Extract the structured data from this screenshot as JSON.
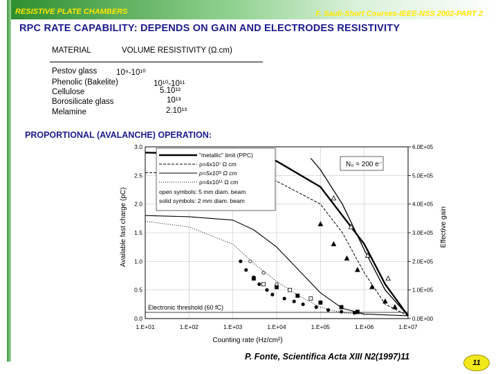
{
  "header": {
    "left": "RESISTIVE PLATE CHAMBERS",
    "right": "F. Sauli-Short Courses-IEEE-NSS 2002-PART 2"
  },
  "title": "RPC RATE CAPABILITY: DEPENDS ON GAIN AND ELECTRODES RESISTIVITY",
  "table": {
    "col_material": "MATERIAL",
    "col_resistivity": "VOLUME RESISTIVITY (Ω.cm)",
    "rows": [
      {
        "material": "Pestov glass",
        "resistivity": "10⁹-10¹⁰"
      },
      {
        "material": "Phenolic (Bakelite)",
        "resistivity": "10¹⁰-10¹¹"
      },
      {
        "material": "Cellulose",
        "resistivity": "5.10¹²"
      },
      {
        "material": "Borosilicate glass",
        "resistivity": "10¹³"
      },
      {
        "material": "Melamine",
        "resistivity": "2.10¹³"
      }
    ]
  },
  "section_title": "PROPORTIONAL (AVALANCHE) OPERATION:",
  "citation": "P. Fonte, Scientifica Acta XIII N2(1997)11",
  "page_number": "11",
  "colors": {
    "header_text": "#ffe800",
    "title_text": "#1b1b8f",
    "header_green": "#2f8f2f",
    "badge": "#f3e81a"
  },
  "chart_data": {
    "type": "line",
    "xlabel": "Counting rate (Hz/cm²)",
    "ylabel": "Available fast charge (pC)",
    "y2label": "Effective gain",
    "x_scale": "log",
    "x_ticks": [
      "1.E+01",
      "1.E+02",
      "1.E+03",
      "1.E+04",
      "1.E+05",
      "1.E+06",
      "1.E+07"
    ],
    "xlim": [
      10,
      10000000
    ],
    "y_ticks": [
      "0.0",
      "0.5",
      "1.0",
      "1.5",
      "2.0",
      "2.5",
      "3.0"
    ],
    "ylim": [
      0,
      3.0
    ],
    "y2_ticks": [
      "0.0E+00",
      "1.0E+05",
      "2.0E+05",
      "3.0E+05",
      "4.0E+05",
      "5.0E+05",
      "6.0E+05"
    ],
    "y2lim": [
      0,
      600000
    ],
    "threshold_label": "Electronic threshold (60 fC)",
    "threshold_value": 0.06,
    "gain_label": "N₀ = 200 e⁻",
    "legend": [
      "\"metallic\" limit (PPC)",
      "ρ=4x10⁷ Ω cm",
      "ρ=5x10⁹ Ω cm",
      "ρ=4x10¹¹ Ω cm",
      "open symbols: 5 mm diam. beam",
      "solid symbols: 2 mm diam. beam"
    ],
    "series": [
      {
        "style": "bold",
        "points": [
          [
            10,
            2.9
          ],
          [
            100,
            2.88
          ],
          [
            1000,
            2.85
          ],
          [
            10000,
            2.75
          ],
          [
            100000,
            2.3
          ],
          [
            1000000,
            1.3
          ],
          [
            3000000,
            0.6
          ],
          [
            10000000,
            0.05
          ]
        ]
      },
      {
        "style": "dashed",
        "points": [
          [
            10,
            2.55
          ],
          [
            100,
            2.54
          ],
          [
            1000,
            2.52
          ],
          [
            10000,
            2.4
          ],
          [
            100000,
            2.0
          ],
          [
            316000,
            1.5
          ],
          [
            1000000,
            0.8
          ],
          [
            3000000,
            0.25
          ],
          [
            10000000,
            0.05
          ]
        ]
      },
      {
        "style": "solid",
        "points": [
          [
            10,
            1.8
          ],
          [
            100,
            1.78
          ],
          [
            1000,
            1.72
          ],
          [
            3000,
            1.55
          ],
          [
            10000,
            1.25
          ],
          [
            31600,
            0.85
          ],
          [
            100000,
            0.45
          ],
          [
            316000,
            0.18
          ],
          [
            1000000,
            0.08
          ],
          [
            10000000,
            0.05
          ]
        ]
      },
      {
        "style": "dotted",
        "points": [
          [
            10,
            1.7
          ],
          [
            100,
            1.6
          ],
          [
            1000,
            1.3
          ],
          [
            3160,
            0.95
          ],
          [
            10000,
            0.65
          ],
          [
            31600,
            0.4
          ],
          [
            100000,
            0.2
          ],
          [
            316000,
            0.1
          ],
          [
            1000000,
            0.07
          ]
        ]
      },
      {
        "style": "steep",
        "points": [
          [
            60000,
            2.8
          ],
          [
            100000,
            2.6
          ],
          [
            316000,
            2.0
          ],
          [
            1000000,
            1.2
          ],
          [
            3000000,
            0.5
          ],
          [
            10000000,
            0.05
          ]
        ]
      }
    ],
    "markers": [
      {
        "x": 100000,
        "y": 1.65,
        "s": "tri"
      },
      {
        "x": 200000,
        "y": 1.3,
        "s": "tri"
      },
      {
        "x": 400000,
        "y": 1.05,
        "s": "tri"
      },
      {
        "x": 700000,
        "y": 0.85,
        "s": "tri"
      },
      {
        "x": 1500000,
        "y": 0.55,
        "s": "tri"
      },
      {
        "x": 3000000,
        "y": 0.3,
        "s": "tri"
      },
      {
        "x": 5000000,
        "y": 0.2,
        "s": "tri"
      },
      {
        "x": 200000,
        "y": 2.1,
        "s": "tri-open"
      },
      {
        "x": 500000,
        "y": 1.6,
        "s": "tri-open"
      },
      {
        "x": 1200000,
        "y": 1.1,
        "s": "tri-open"
      },
      {
        "x": 3500000,
        "y": 0.7,
        "s": "tri-open"
      },
      {
        "x": 3000,
        "y": 0.7,
        "s": "sq"
      },
      {
        "x": 10000,
        "y": 0.55,
        "s": "sq"
      },
      {
        "x": 30000,
        "y": 0.4,
        "s": "sq"
      },
      {
        "x": 100000,
        "y": 0.28,
        "s": "sq"
      },
      {
        "x": 300000,
        "y": 0.2,
        "s": "sq"
      },
      {
        "x": 700000,
        "y": 0.12,
        "s": "sq"
      },
      {
        "x": 5000,
        "y": 0.6,
        "s": "sq-open"
      },
      {
        "x": 20000,
        "y": 0.5,
        "s": "sq-open"
      },
      {
        "x": 60000,
        "y": 0.35,
        "s": "sq-open"
      },
      {
        "x": 1500,
        "y": 1.0,
        "s": "dot"
      },
      {
        "x": 2000,
        "y": 0.85,
        "s": "dot"
      },
      {
        "x": 3000,
        "y": 0.72,
        "s": "dot"
      },
      {
        "x": 4000,
        "y": 0.6,
        "s": "dot"
      },
      {
        "x": 6000,
        "y": 0.5,
        "s": "dot"
      },
      {
        "x": 8000,
        "y": 0.42,
        "s": "dot"
      },
      {
        "x": 15000,
        "y": 0.35,
        "s": "dot"
      },
      {
        "x": 25000,
        "y": 0.3,
        "s": "dot"
      },
      {
        "x": 40000,
        "y": 0.25,
        "s": "dot"
      },
      {
        "x": 80000,
        "y": 0.2,
        "s": "dot"
      },
      {
        "x": 150000,
        "y": 0.15,
        "s": "dot"
      },
      {
        "x": 300000,
        "y": 0.12,
        "s": "dot"
      },
      {
        "x": 600000,
        "y": 0.1,
        "s": "dot"
      },
      {
        "x": 2500,
        "y": 1.0,
        "s": "dot-open"
      },
      {
        "x": 5000,
        "y": 0.8,
        "s": "dot-open"
      },
      {
        "x": 10000,
        "y": 0.6,
        "s": "dot-open"
      }
    ]
  }
}
